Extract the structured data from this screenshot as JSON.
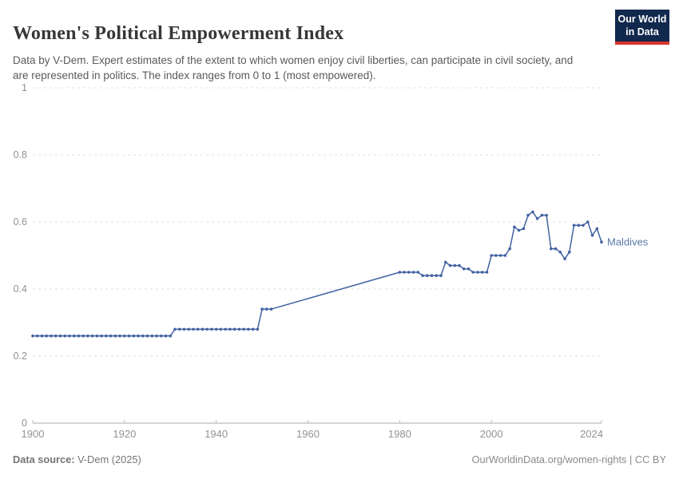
{
  "header": {
    "title": "Women's Political Empowerment Index",
    "subtitle": "Data by V-Dem. Expert estimates of the extent to which women enjoy civil liberties, can participate in civil society, and are represented in politics. The index ranges from 0 to 1 (most empowered)."
  },
  "logo": {
    "line1": "Our World",
    "line2": "in Data",
    "bg_color": "#12294e",
    "accent_color": "#d8352c"
  },
  "chart_data": {
    "type": "line",
    "entity_label": "Maldives",
    "x": {
      "min": 1900,
      "max": 2024,
      "ticks": [
        1900,
        1920,
        1940,
        1960,
        1980,
        2000,
        2024
      ]
    },
    "y": {
      "min": 0,
      "max": 1,
      "ticks": [
        0,
        0.2,
        0.4,
        0.6,
        0.8,
        1
      ]
    },
    "grid": "horizontal-dashed",
    "legend_position": "line-end-label",
    "line_color": "#4263a2",
    "label_color": "#5b79a8",
    "axis_text_color": "#929292",
    "gridline_color": "#e2e2e2",
    "axis_line_color": "#a9a9a9",
    "series": [
      {
        "name": "Maldives",
        "marker": "dot-every-year",
        "data_gap": [
          1953,
          1979
        ],
        "segments": [
          [
            1900,
            1930,
            0.26
          ],
          [
            1931,
            1949,
            0.28
          ],
          [
            1950,
            1952,
            0.34
          ],
          [
            1980,
            1984,
            0.45
          ],
          [
            1985,
            1989,
            0.44
          ],
          [
            1990,
            1990,
            0.48
          ],
          [
            1991,
            1993,
            0.47
          ],
          [
            1994,
            1995,
            0.46
          ],
          [
            1996,
            1999,
            0.45
          ],
          [
            2000,
            2003,
            0.5
          ],
          [
            2004,
            2004,
            0.52
          ],
          [
            2005,
            2005,
            0.585
          ],
          [
            2006,
            2006,
            0.575
          ],
          [
            2007,
            2007,
            0.58
          ],
          [
            2008,
            2008,
            0.62
          ],
          [
            2009,
            2009,
            0.63
          ],
          [
            2010,
            2010,
            0.61
          ],
          [
            2011,
            2011,
            0.62
          ],
          [
            2012,
            2012,
            0.62
          ],
          [
            2013,
            2014,
            0.52
          ],
          [
            2015,
            2015,
            0.51
          ],
          [
            2016,
            2016,
            0.49
          ],
          [
            2017,
            2017,
            0.51
          ],
          [
            2018,
            2020,
            0.59
          ],
          [
            2021,
            2021,
            0.6
          ],
          [
            2022,
            2022,
            0.56
          ],
          [
            2023,
            2023,
            0.58
          ],
          [
            2024,
            2024,
            0.54
          ]
        ]
      }
    ]
  },
  "footer": {
    "source_label": "Data source:",
    "source_value": " V-Dem (2025)",
    "url": "OurWorldinData.org/women-rights",
    "separator": " | ",
    "license": "CC BY"
  }
}
